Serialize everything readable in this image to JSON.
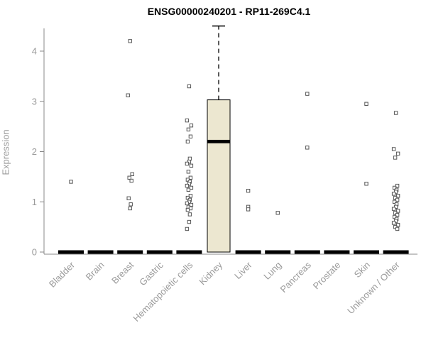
{
  "chart_data": {
    "type": "boxplot",
    "title": "ENSG00000240201 - RP11-269C4.1",
    "ylabel": "Expression",
    "ylim": [
      0,
      4.6
    ],
    "yticks": [
      0,
      1,
      2,
      3,
      4
    ],
    "legend": "none",
    "grid": false,
    "box_fill": "#ece7d0",
    "axis_color": "#888888",
    "tick_label_color": "#9a9a9a",
    "categories": [
      "Bladder",
      "Brain",
      "Breast",
      "Gastric",
      "Hematopoietic cells",
      "Kidney",
      "Liver",
      "Lung",
      "Pancreas",
      "Prostate",
      "Skin",
      "Unknown / Other"
    ],
    "boxes": [
      {
        "category": "Bladder",
        "whisker_low": 0,
        "q1": 0,
        "median": 0,
        "q3": 0,
        "whisker_high": 0,
        "outliers": [
          1.4
        ]
      },
      {
        "category": "Brain",
        "whisker_low": 0,
        "q1": 0,
        "median": 0,
        "q3": 0,
        "whisker_high": 0,
        "outliers": []
      },
      {
        "category": "Breast",
        "whisker_low": 0,
        "q1": 0,
        "median": 0,
        "q3": 0,
        "whisker_high": 0,
        "outliers": [
          4.2,
          3.12,
          1.55,
          1.48,
          1.42,
          1.07,
          0.95,
          0.87
        ]
      },
      {
        "category": "Gastric",
        "whisker_low": 0,
        "q1": 0,
        "median": 0,
        "q3": 0,
        "whisker_high": 0,
        "outliers": []
      },
      {
        "category": "Hematopoietic cells",
        "whisker_low": 0,
        "q1": 0,
        "median": 0,
        "q3": 0,
        "whisker_high": 0,
        "outliers": [
          3.3,
          2.62,
          2.52,
          2.44,
          2.3,
          2.2,
          1.86,
          1.8,
          1.76,
          1.72,
          1.6,
          1.48,
          1.44,
          1.4,
          1.36,
          1.32,
          1.28,
          1.24,
          1.12,
          1.08,
          1.04,
          1.0,
          0.97,
          0.94,
          0.9,
          0.87,
          0.84,
          0.75,
          0.6,
          0.46
        ]
      },
      {
        "category": "Kidney",
        "whisker_low": 0,
        "q1": 0,
        "median": 2.2,
        "q3": 3.03,
        "whisker_high": 4.5,
        "outliers": []
      },
      {
        "category": "Liver",
        "whisker_low": 0,
        "q1": 0,
        "median": 0,
        "q3": 0,
        "whisker_high": 0,
        "outliers": [
          1.22,
          0.9,
          0.85
        ]
      },
      {
        "category": "Lung",
        "whisker_low": 0,
        "q1": 0,
        "median": 0,
        "q3": 0,
        "whisker_high": 0,
        "outliers": [
          0.78
        ]
      },
      {
        "category": "Pancreas",
        "whisker_low": 0,
        "q1": 0,
        "median": 0,
        "q3": 0,
        "whisker_high": 0,
        "outliers": [
          3.15,
          2.08
        ]
      },
      {
        "category": "Prostate",
        "whisker_low": 0,
        "q1": 0,
        "median": 0,
        "q3": 0,
        "whisker_high": 0,
        "outliers": []
      },
      {
        "category": "Skin",
        "whisker_low": 0,
        "q1": 0,
        "median": 0,
        "q3": 0,
        "whisker_high": 0,
        "outliers": [
          2.95,
          1.36
        ]
      },
      {
        "category": "Unknown / Other",
        "whisker_low": 0,
        "q1": 0,
        "median": 0,
        "q3": 0,
        "whisker_high": 0,
        "outliers": [
          2.77,
          2.05,
          1.96,
          1.88,
          1.32,
          1.28,
          1.24,
          1.2,
          1.16,
          1.12,
          1.08,
          1.04,
          1.0,
          0.95,
          0.9,
          0.86,
          0.82,
          0.78,
          0.74,
          0.7,
          0.66,
          0.62,
          0.58,
          0.54,
          0.5,
          0.46
        ]
      }
    ]
  }
}
